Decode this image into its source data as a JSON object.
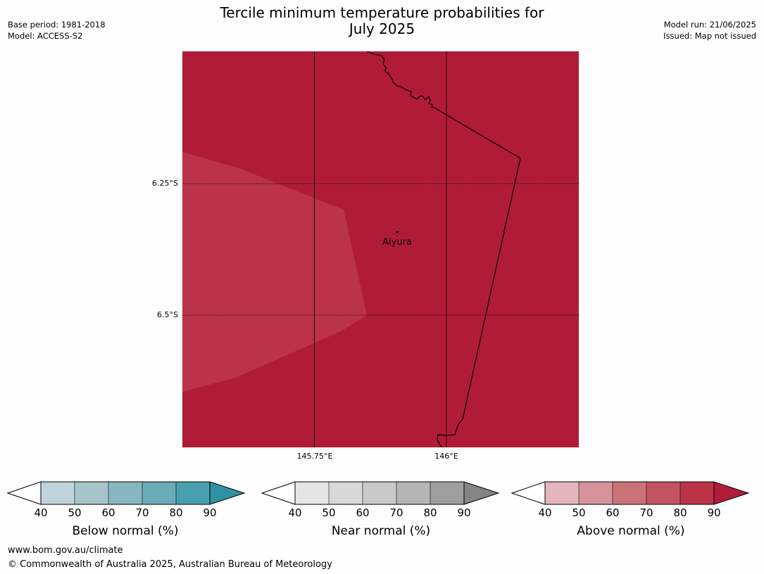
{
  "title_line1": "Tercile minimum temperature probabilities for",
  "title_line2": "July 2025",
  "base_period": "Base period: 1981-2018",
  "model": "Model: ACCESS-S2",
  "model_run": "Model run: 21/06/2025",
  "issued": "Issued: Map not issued",
  "lat_labels": [
    "6.25°S",
    "6.5°S"
  ],
  "lon_labels": [
    "145.75°E",
    "146°E"
  ],
  "city": "Aiyura",
  "colorbars": [
    {
      "label": "Below normal (%)",
      "ticks": [
        "40",
        "50",
        "60",
        "70",
        "80",
        "90"
      ],
      "colors": [
        "#bfd3da",
        "#a6c5cb",
        "#88b6c1",
        "#6aabb8",
        "#47a0ae",
        "#2e92a2"
      ]
    },
    {
      "label": "Near normal (%)",
      "ticks": [
        "40",
        "50",
        "60",
        "70",
        "80",
        "90"
      ],
      "colors": [
        "#e6e6e6",
        "#d8d8d8",
        "#c9c9c9",
        "#b5b5b5",
        "#9f9f9f",
        "#848484"
      ]
    },
    {
      "label": "Above normal (%)",
      "ticks": [
        "40",
        "50",
        "60",
        "70",
        "80",
        "90"
      ],
      "colors": [
        "#e2b6bc",
        "#d6939b",
        "#cb7278",
        "#c25462",
        "#bb3347",
        "#b01c3a"
      ]
    }
  ],
  "map_colors": {
    "dominant": "#b01c38",
    "lighter_region": "#bb3349"
  },
  "footer_url": "www.bom.gov.au/climate",
  "footer_copyright": "© Commonwealth of Australia 2025, Australian Bureau of Meteorology"
}
